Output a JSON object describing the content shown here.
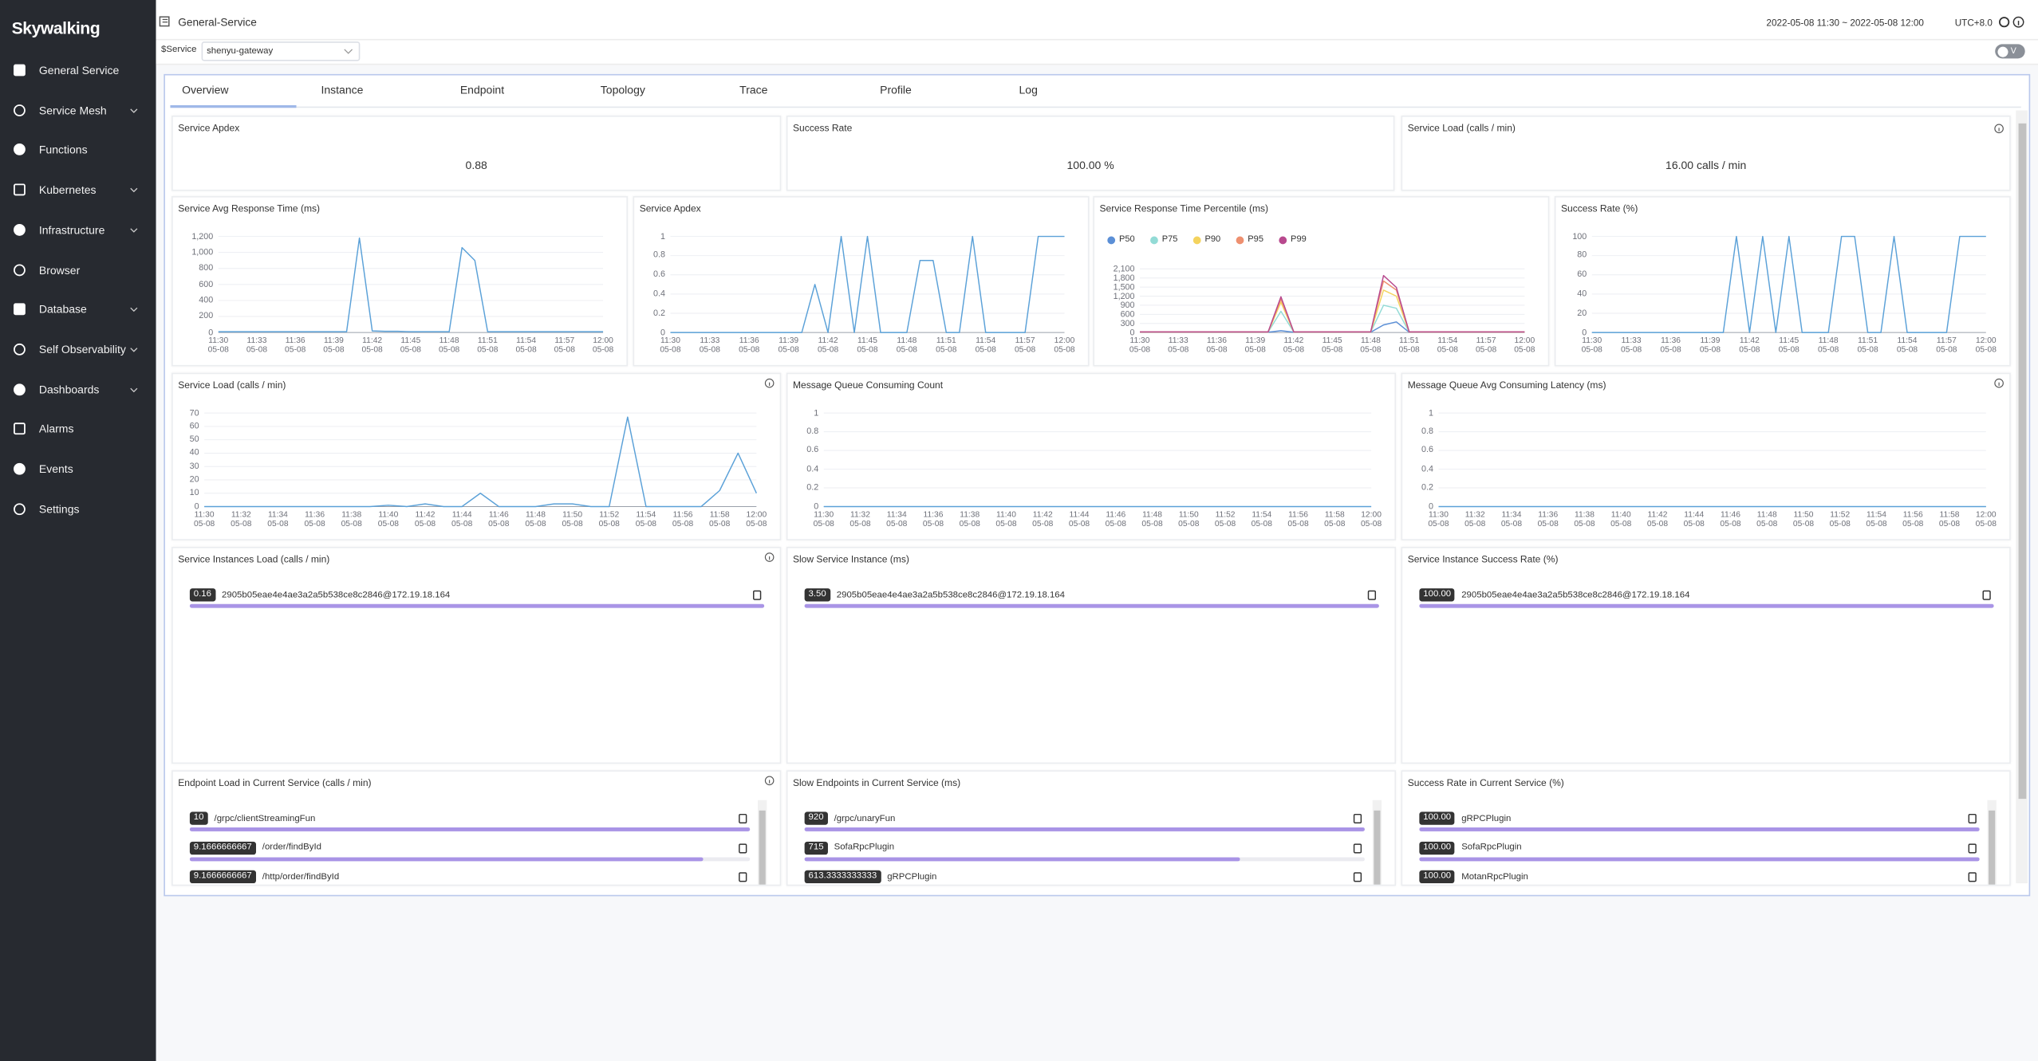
{
  "sidebar": {
    "logo": "Skywalking",
    "menu": [
      {
        "label": "General Service",
        "expandable": false
      },
      {
        "label": "Service Mesh",
        "expandable": true
      },
      {
        "label": "Functions",
        "expandable": false
      },
      {
        "label": "Kubernetes",
        "expandable": true
      },
      {
        "label": "Infrastructure",
        "expandable": true
      },
      {
        "label": "Browser",
        "expandable": false
      },
      {
        "label": "Database",
        "expandable": true
      },
      {
        "label": "Self Observability",
        "expandable": true
      },
      {
        "label": "Dashboards",
        "expandable": true
      },
      {
        "label": "Alarms",
        "expandable": false
      },
      {
        "label": "Events",
        "expandable": false
      },
      {
        "label": "Settings",
        "expandable": false
      }
    ]
  },
  "header": {
    "title": "General-Service",
    "time_range": "2022-05-08 11:30 ~ 2022-05-08 12:00",
    "timezone": "UTC+8.0"
  },
  "toolbar": {
    "service_label": "$Service",
    "service_value": "shenyu-gateway",
    "toggle": "V"
  },
  "tabs": {
    "items": [
      "Overview",
      "Instance",
      "Endpoint",
      "Topology",
      "Trace",
      "Profile",
      "Log"
    ],
    "active": 0
  },
  "cards": [
    {
      "title": "Service Apdex",
      "value": "0.88",
      "info": false
    },
    {
      "title": "Success Rate",
      "value": "100.00 %",
      "info": false
    },
    {
      "title": "Service Load (calls / min)",
      "value": "16.00 calls / min",
      "info": true
    }
  ],
  "chart_data": [
    {
      "type": "line",
      "title": "Service Avg Response Time (ms)",
      "info": false,
      "categories": [
        "11:30\n05-08",
        null,
        null,
        "11:33\n05-08",
        null,
        null,
        "11:36\n05-08",
        null,
        null,
        "11:39\n05-08",
        null,
        null,
        "11:42\n05-08",
        null,
        null,
        "11:45\n05-08",
        null,
        null,
        "11:48\n05-08",
        null,
        null,
        "11:51\n05-08",
        null,
        null,
        "11:54\n05-08",
        null,
        null,
        "11:57\n05-08",
        null,
        null,
        "12:00\n05-08"
      ],
      "values": [
        10,
        10,
        10,
        10,
        10,
        10,
        10,
        10,
        10,
        10,
        10,
        1180,
        20,
        15,
        15,
        10,
        10,
        10,
        10,
        1060,
        900,
        10,
        10,
        10,
        10,
        10,
        10,
        10,
        10,
        10,
        10
      ],
      "color": "#5ba1d8",
      "ylim": [
        0,
        1200
      ],
      "yticks": [
        0,
        200,
        400,
        600,
        800,
        {
          "value": 1000,
          "label": "1,000"
        },
        {
          "value": 1200,
          "label": "1,200"
        }
      ],
      "grid": true
    },
    {
      "type": "line",
      "title": "Service Apdex",
      "info": false,
      "categories": [
        "11:30\n05-08",
        null,
        null,
        "11:33\n05-08",
        null,
        null,
        "11:36\n05-08",
        null,
        null,
        "11:39\n05-08",
        null,
        null,
        "11:42\n05-08",
        null,
        null,
        "11:45\n05-08",
        null,
        null,
        "11:48\n05-08",
        null,
        null,
        "11:51\n05-08",
        null,
        null,
        "11:54\n05-08",
        null,
        null,
        "11:57\n05-08",
        null,
        null,
        "12:00\n05-08"
      ],
      "values": [
        0,
        0,
        0,
        0,
        0,
        0,
        0,
        0,
        0,
        0,
        0,
        0.5,
        0,
        1,
        0,
        1,
        0,
        0,
        0,
        0.75,
        0.75,
        0,
        0,
        1,
        0,
        0,
        0,
        0,
        1,
        1,
        1
      ],
      "color": "#5ba1d8",
      "ylim": [
        0,
        1
      ],
      "yticks": [
        0,
        0.2,
        0.4,
        0.6,
        0.8,
        1
      ],
      "grid": true
    },
    {
      "type": "line",
      "title": "Service Response Time Percentile (ms)",
      "info": false,
      "legend": true,
      "categories": [
        "11:30\n05-08",
        null,
        null,
        "11:33\n05-08",
        null,
        null,
        "11:36\n05-08",
        null,
        null,
        "11:39\n05-08",
        null,
        null,
        "11:42\n05-08",
        null,
        null,
        "11:45\n05-08",
        null,
        null,
        "11:48\n05-08",
        null,
        null,
        "11:51\n05-08",
        null,
        null,
        "11:54\n05-08",
        null,
        null,
        "11:57\n05-08",
        null,
        null,
        "12:00\n05-08"
      ],
      "series": [
        {
          "name": "P50",
          "color": "#5b8fd6",
          "values": [
            10,
            10,
            10,
            10,
            10,
            10,
            10,
            10,
            10,
            10,
            10,
            60,
            10,
            10,
            10,
            10,
            10,
            10,
            10,
            250,
            350,
            10,
            10,
            10,
            10,
            10,
            10,
            10,
            10,
            10,
            10
          ]
        },
        {
          "name": "P75",
          "color": "#93dbd6",
          "values": [
            15,
            15,
            15,
            15,
            15,
            15,
            15,
            15,
            15,
            15,
            15,
            700,
            15,
            15,
            15,
            15,
            15,
            15,
            15,
            900,
            800,
            15,
            15,
            15,
            15,
            15,
            15,
            15,
            15,
            15,
            15
          ]
        },
        {
          "name": "P90",
          "color": "#f4d35e",
          "values": [
            18,
            18,
            18,
            18,
            18,
            18,
            18,
            18,
            18,
            18,
            18,
            1000,
            18,
            18,
            18,
            18,
            18,
            18,
            18,
            1400,
            1200,
            18,
            18,
            18,
            18,
            18,
            18,
            18,
            18,
            18,
            18
          ]
        },
        {
          "name": "P95",
          "color": "#ee9070",
          "values": [
            20,
            20,
            20,
            20,
            20,
            20,
            20,
            20,
            20,
            20,
            20,
            1100,
            20,
            20,
            20,
            20,
            20,
            20,
            20,
            1700,
            1400,
            20,
            20,
            20,
            20,
            20,
            20,
            20,
            20,
            20,
            20
          ]
        },
        {
          "name": "P99",
          "color": "#b8498e",
          "values": [
            20,
            20,
            20,
            20,
            20,
            20,
            20,
            20,
            20,
            20,
            20,
            1180,
            20,
            20,
            20,
            20,
            20,
            20,
            20,
            1880,
            1490,
            20,
            20,
            20,
            20,
            20,
            20,
            20,
            20,
            20,
            20
          ]
        }
      ],
      "ylim": [
        0,
        2100
      ],
      "yticks": [
        0,
        300,
        600,
        900,
        {
          "value": 1200,
          "label": "1,200"
        },
        {
          "value": 1500,
          "label": "1,500"
        },
        {
          "value": 1800,
          "label": "1,800"
        },
        {
          "value": 2100,
          "label": "2,100"
        }
      ],
      "grid": true
    },
    {
      "type": "line",
      "title": "Success Rate (%)",
      "info": false,
      "categories": [
        "11:30\n05-08",
        null,
        null,
        "11:33\n05-08",
        null,
        null,
        "11:36\n05-08",
        null,
        null,
        "11:39\n05-08",
        null,
        null,
        "11:42\n05-08",
        null,
        null,
        "11:45\n05-08",
        null,
        null,
        "11:48\n05-08",
        null,
        null,
        "11:51\n05-08",
        null,
        null,
        "11:54\n05-08",
        null,
        null,
        "11:57\n05-08",
        null,
        null,
        "12:00\n05-08"
      ],
      "values": [
        0,
        0,
        0,
        0,
        0,
        0,
        0,
        0,
        0,
        0,
        0,
        100,
        0,
        100,
        0,
        100,
        0,
        0,
        0,
        100,
        100,
        0,
        0,
        100,
        0,
        0,
        0,
        0,
        100,
        100,
        100
      ],
      "color": "#5ba1d8",
      "ylim": [
        0,
        100
      ],
      "yticks": [
        0,
        20,
        40,
        60,
        80,
        100
      ],
      "grid": true
    },
    {
      "type": "line",
      "title": "Service Load (calls / min)",
      "info": true,
      "categories": [
        "11:30\n05-08",
        null,
        "11:32\n05-08",
        null,
        "11:34\n05-08",
        null,
        "11:36\n05-08",
        null,
        "11:38\n05-08",
        null,
        "11:40\n05-08",
        null,
        "11:42\n05-08",
        null,
        "11:44\n05-08",
        null,
        "11:46\n05-08",
        null,
        "11:48\n05-08",
        null,
        "11:50\n05-08",
        null,
        "11:52\n05-08",
        null,
        "11:54\n05-08",
        null,
        "11:56\n05-08",
        null,
        "11:58\n05-08",
        null,
        "12:00\n05-08"
      ],
      "values": [
        0,
        0,
        0,
        0,
        0,
        0,
        0,
        0,
        0,
        0,
        1,
        0,
        2,
        0,
        0,
        10,
        0,
        0,
        0,
        2,
        2,
        0,
        0,
        67,
        0,
        0,
        0,
        0,
        12,
        40,
        10
      ],
      "color": "#5ba1d8",
      "ylim": [
        0,
        70
      ],
      "yticks": [
        0,
        10,
        20,
        30,
        40,
        50,
        60,
        70
      ],
      "grid": true
    },
    {
      "type": "line",
      "title": "Message Queue Consuming Count",
      "info": false,
      "categories": [
        "11:30\n05-08",
        null,
        "11:32\n05-08",
        null,
        "11:34\n05-08",
        null,
        "11:36\n05-08",
        null,
        "11:38\n05-08",
        null,
        "11:40\n05-08",
        null,
        "11:42\n05-08",
        null,
        "11:44\n05-08",
        null,
        "11:46\n05-08",
        null,
        "11:48\n05-08",
        null,
        "11:50\n05-08",
        null,
        "11:52\n05-08",
        null,
        "11:54\n05-08",
        null,
        "11:56\n05-08",
        null,
        "11:58\n05-08",
        null,
        "12:00\n05-08"
      ],
      "values": [
        0,
        0,
        0,
        0,
        0,
        0,
        0,
        0,
        0,
        0,
        0,
        0,
        0,
        0,
        0,
        0,
        0,
        0,
        0,
        0,
        0,
        0,
        0,
        0,
        0,
        0,
        0,
        0,
        0,
        0,
        0
      ],
      "color": "#5ba1d8",
      "ylim": [
        0,
        1
      ],
      "yticks": [
        0,
        0.2,
        0.4,
        0.6,
        0.8,
        1
      ],
      "grid": true
    },
    {
      "type": "line",
      "title": "Message Queue Avg Consuming Latency (ms)",
      "info": true,
      "categories": [
        "11:30\n05-08",
        null,
        "11:32\n05-08",
        null,
        "11:34\n05-08",
        null,
        "11:36\n05-08",
        null,
        "11:38\n05-08",
        null,
        "11:40\n05-08",
        null,
        "11:42\n05-08",
        null,
        "11:44\n05-08",
        null,
        "11:46\n05-08",
        null,
        "11:48\n05-08",
        null,
        "11:50\n05-08",
        null,
        "11:52\n05-08",
        null,
        "11:54\n05-08",
        null,
        "11:56\n05-08",
        null,
        "11:58\n05-08",
        null,
        "12:00\n05-08"
      ],
      "values": [
        0,
        0,
        0,
        0,
        0,
        0,
        0,
        0,
        0,
        0,
        0,
        0,
        0,
        0,
        0,
        0,
        0,
        0,
        0,
        0,
        0,
        0,
        0,
        0,
        0,
        0,
        0,
        0,
        0,
        0,
        0
      ],
      "color": "#5ba1d8",
      "ylim": [
        0,
        1
      ],
      "yticks": [
        0,
        0.2,
        0.4,
        0.6,
        0.8,
        1
      ],
      "grid": true
    }
  ],
  "lists": [
    {
      "title": "Service Instances Load (calls / min)",
      "info": true,
      "items": [
        {
          "value": 0.16,
          "name": "2905b05eae4e4ae3a2a5b538ce8c2846@172.19.18.164"
        }
      ]
    },
    {
      "title": "Slow Service Instance (ms)",
      "info": false,
      "items": [
        {
          "value": 3.5,
          "value_label": "3.50",
          "name": "2905b05eae4e4ae3a2a5b538ce8c2846@172.19.18.164"
        }
      ]
    },
    {
      "title": "Service Instance Success Rate (%)",
      "info": false,
      "items": [
        {
          "value": 100,
          "value_label": "100.00",
          "name": "2905b05eae4e4ae3a2a5b538ce8c2846@172.19.18.164"
        }
      ]
    },
    {
      "title": "Endpoint Load in Current Service (calls / min)",
      "info": true,
      "items": [
        {
          "value": 10,
          "name": "/grpc/clientStreamingFun"
        },
        {
          "value": 9.1666666667,
          "name": "/order/findById"
        },
        {
          "value": 9.1666666667,
          "name": "/http/order/findById"
        }
      ]
    },
    {
      "title": "Slow Endpoints in Current Service (ms)",
      "info": false,
      "items": [
        {
          "value": 920,
          "name": "/grpc/unaryFun"
        },
        {
          "value": 715,
          "name": "SofaRpcPlugin"
        },
        {
          "value": 613.3333333333,
          "name": "gRPCPlugin"
        }
      ]
    },
    {
      "title": "Success Rate in Current Service (%)",
      "info": false,
      "items": [
        {
          "value": 100,
          "value_label": "100.00",
          "name": "gRPCPlugin"
        },
        {
          "value": 100,
          "value_label": "100.00",
          "name": "SofaRpcPlugin"
        },
        {
          "value": 100,
          "value_label": "100.00",
          "name": "MotanRpcPlugin"
        }
      ]
    }
  ]
}
